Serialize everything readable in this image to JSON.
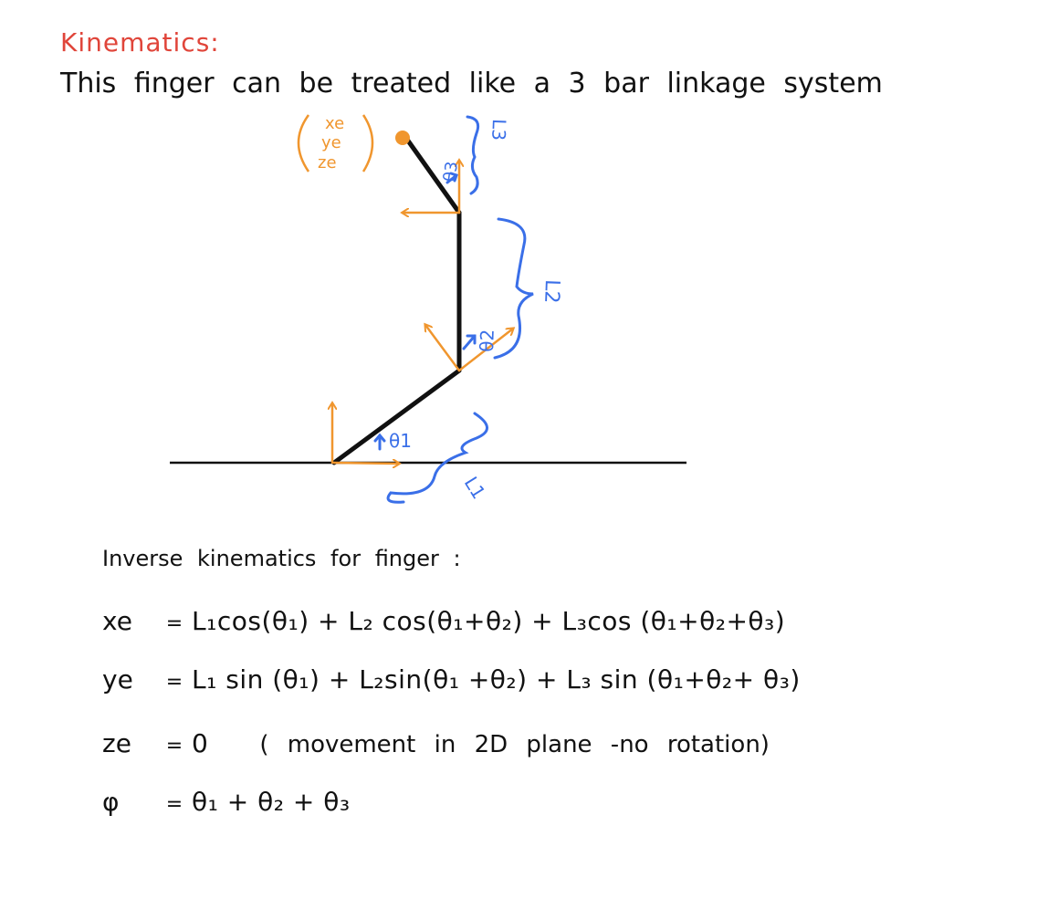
{
  "header": {
    "title": "Kinematics:",
    "subtitle": "This finger can be treated like a 3 bar linkage system"
  },
  "diagram": {
    "end_effector_label": [
      "xe",
      "ye",
      "ze"
    ],
    "angle_labels": [
      "θ1",
      "θ2",
      "θ3"
    ],
    "length_labels": [
      "L1",
      "L2",
      "L3"
    ],
    "colors": {
      "link": "#111111",
      "frame_arrow": "#f0962e",
      "annotation": "#3a6fe8",
      "title": "#e0453a"
    }
  },
  "section": {
    "title": "Inverse kinematics for finger :"
  },
  "equations": [
    {
      "lhs": "xe",
      "sign": "=",
      "rhs": "L₁cos(θ₁) + L₂ cos(θ₁+θ₂) + L₃cos (θ₁+θ₂+θ₃)",
      "note": ""
    },
    {
      "lhs": "ye",
      "sign": "=",
      "rhs": "L₁ sin (θ₁) + L₂sin(θ₁ +θ₂) + L₃ sin (θ₁+θ₂+ θ₃)",
      "note": ""
    },
    {
      "lhs": "ze",
      "sign": "=",
      "rhs": "0",
      "note": "( movement in 2D plane -no rotation)"
    },
    {
      "lhs": "φ",
      "sign": "=",
      "rhs": "θ₁ + θ₂ + θ₃",
      "note": ""
    }
  ]
}
